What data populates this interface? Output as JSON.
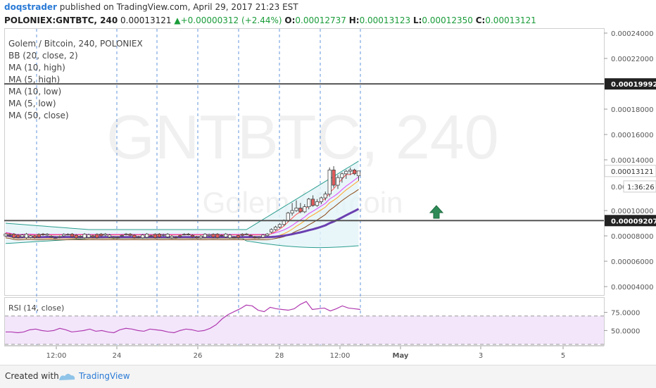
{
  "header": {
    "author": "doqstrader",
    "published": " published on TradingView.com, April 29, 2017 21:23 EST",
    "symbol": "POLONIEX:GNTBTC, 240",
    "last": "0.00013121",
    "change": "+0.00000312 (+2.44%)",
    "o_label": "O:",
    "o_value": "0.00012737",
    "h_label": "H:",
    "h_value": "0.00013123",
    "l_label": "L:",
    "l_value": "0.00012350",
    "c_label": "C:",
    "c_value": "0.00013121"
  },
  "legend": [
    "Golem / Bitcoin, 240, POLONIEX",
    "BB (20, close, 2)",
    "MA (10, high)",
    "MA (5, high)",
    "MA (10, low)",
    "MA (5, low)",
    "MA (50, close)"
  ],
  "watermark": {
    "main": "GNTBTC, 240",
    "sub": "Golem / Bitcoin"
  },
  "price_axis": {
    "ticks": [
      "0.00024000",
      "0.00022000",
      "0.00020000",
      "0.00018000",
      "0.00016000",
      "0.00014000",
      "0.00012000",
      "0.00010000",
      "0.00008000",
      "0.00006000",
      "0.00004000"
    ],
    "tick_values": [
      0.00024,
      0.00022,
      0.0002,
      0.00018,
      0.00016,
      0.00014,
      0.00012,
      0.0001,
      8e-05,
      6e-05,
      4e-05
    ],
    "current_label": "0.00013121",
    "countdown": "1:36:26",
    "countdown_prefix": "0.00",
    "hline_upper_label": "0.00019992",
    "hline_lower_label": "0.00009207"
  },
  "time_axis": {
    "labels": [
      "12:00",
      "24",
      "26",
      "28",
      "12:00",
      "May",
      "3",
      "5"
    ],
    "label_bold": [
      false,
      false,
      false,
      false,
      false,
      true,
      false,
      false
    ]
  },
  "rsi": {
    "title": "RSI (14, close)",
    "ticks": [
      "75.0000",
      "50.0000"
    ],
    "values": [
      48,
      48,
      47,
      48,
      51,
      52,
      50,
      49,
      50,
      53,
      51,
      48,
      49,
      50,
      52,
      49,
      50,
      48,
      47,
      51,
      53,
      52,
      50,
      49,
      52,
      51,
      50,
      48,
      47,
      50,
      52,
      51,
      49,
      50,
      53,
      58,
      66,
      72,
      76,
      80,
      85,
      84,
      78,
      76,
      82,
      80,
      79,
      78,
      80,
      86,
      90,
      79,
      80,
      81,
      77,
      80,
      84,
      81,
      80,
      79
    ]
  },
  "chart_data": [
    {
      "type": "line",
      "title": "Golem / Bitcoin, 240, POLONIEX",
      "xlabel": "",
      "ylabel": "",
      "x_labels": [
        "12:00",
        "24",
        "26",
        "28",
        "12:00",
        "May",
        "3",
        "5"
      ],
      "ylim": [
        3e-05,
        0.000245
      ],
      "horizontal_lines": [
        0.00019992,
        9.207e-05
      ],
      "current_price": 0.00013121,
      "candles_ohlc_late": [
        {
          "o": 8.3e-05,
          "h": 8.6e-05,
          "l": 8.2e-05,
          "c": 8.5e-05
        },
        {
          "o": 8.5e-05,
          "h": 8.8e-05,
          "l": 8.4e-05,
          "c": 8.7e-05
        },
        {
          "o": 8.7e-05,
          "h": 9e-05,
          "l": 8.6e-05,
          "c": 8.9e-05
        },
        {
          "o": 8.9e-05,
          "h": 9.3e-05,
          "l": 8.8e-05,
          "c": 9.2e-05
        },
        {
          "o": 9.2e-05,
          "h": 9.9e-05,
          "l": 9.1e-05,
          "c": 9.8e-05
        },
        {
          "o": 9.8e-05,
          "h": 0.000106,
          "l": 9.6e-05,
          "c": 0.0001
        },
        {
          "o": 0.0001,
          "h": 0.000108,
          "l": 9.9e-05,
          "c": 0.000102
        },
        {
          "o": 0.000102,
          "h": 0.000106,
          "l": 9.8e-05,
          "c": 9.9e-05
        },
        {
          "o": 9.9e-05,
          "h": 0.000105,
          "l": 9.8e-05,
          "c": 0.000103
        },
        {
          "o": 0.000103,
          "h": 0.00011,
          "l": 0.000101,
          "c": 0.000109
        },
        {
          "o": 0.000109,
          "h": 0.000112,
          "l": 0.000103,
          "c": 0.000104
        },
        {
          "o": 0.000104,
          "h": 0.000109,
          "l": 0.000103,
          "c": 0.000107
        },
        {
          "o": 0.000107,
          "h": 0.000111,
          "l": 0.000105,
          "c": 0.00011
        },
        {
          "o": 0.00011,
          "h": 0.000115,
          "l": 0.000108,
          "c": 0.000113
        },
        {
          "o": 0.000113,
          "h": 0.000134,
          "l": 0.000111,
          "c": 0.000132
        },
        {
          "o": 0.000132,
          "h": 0.000135,
          "l": 0.000118,
          "c": 0.00012
        },
        {
          "o": 0.00012,
          "h": 0.000128,
          "l": 0.000117,
          "c": 0.000126
        },
        {
          "o": 0.000126,
          "h": 0.00013,
          "l": 0.000122,
          "c": 0.000129
        },
        {
          "o": 0.000129,
          "h": 0.000132,
          "l": 0.000125,
          "c": 0.000131
        },
        {
          "o": 0.000131,
          "h": 0.000134,
          "l": 0.000128,
          "c": 0.000132
        },
        {
          "o": 0.000132,
          "h": 0.000133,
          "l": 0.000128,
          "c": 0.000129
        },
        {
          "o": 0.0001274,
          "h": 0.0001312,
          "l": 0.0001235,
          "c": 0.0001312
        }
      ],
      "flat_price_level": 8e-05
    },
    {
      "type": "line",
      "title": "RSI (14, close)",
      "ylim": [
        30,
        95
      ],
      "levels": [
        70,
        30
      ]
    }
  ],
  "colors": {
    "up_candle": "#ffffff",
    "down_candle": "#e55a5a",
    "wick": "#444444",
    "bb_band": "#2a9d8f",
    "ma_high10": "#e040fb",
    "ma_high5": "#ff5252",
    "ma_low10": "#ffa726",
    "ma_low5": "#8b4513",
    "ma50": "#6a3fb0",
    "rsi_line": "#b03ab0",
    "rsi_fill": "#f3e6fb",
    "arrow": "#2e8b57",
    "vline": "#3a7bd5"
  },
  "footer": {
    "created": "Created with",
    "brand": "TradingView"
  }
}
